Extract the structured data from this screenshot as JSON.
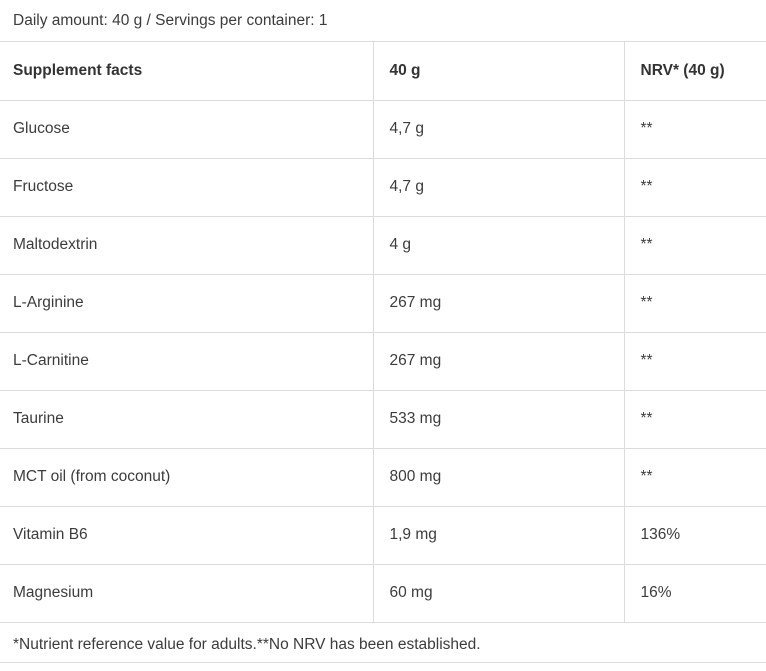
{
  "daily_amount": "Daily amount: 40 g / Servings per container: 1",
  "header": {
    "col1": "Supplement facts",
    "col2": "40 g",
    "col3": "NRV* (40 g)"
  },
  "rows": [
    {
      "name": "Glucose",
      "amount": "4,7 g",
      "nrv": "**"
    },
    {
      "name": "Fructose",
      "amount": "4,7 g",
      "nrv": "**"
    },
    {
      "name": "Maltodextrin",
      "amount": "4 g",
      "nrv": "**"
    },
    {
      "name": "L-Arginine",
      "amount": "267 mg",
      "nrv": "**"
    },
    {
      "name": "L-Carnitine",
      "amount": "267 mg",
      "nrv": "**"
    },
    {
      "name": "Taurine",
      "amount": "533 mg",
      "nrv": "**"
    },
    {
      "name": "MCT oil (from coconut)",
      "amount": "800 mg",
      "nrv": "**"
    },
    {
      "name": "Vitamin B6",
      "amount": "1,9 mg",
      "nrv": "136%"
    },
    {
      "name": "Magnesium",
      "amount": "60 mg",
      "nrv": "16%"
    }
  ],
  "footnote": "*Nutrient reference value for adults.**No NRV has been established."
}
